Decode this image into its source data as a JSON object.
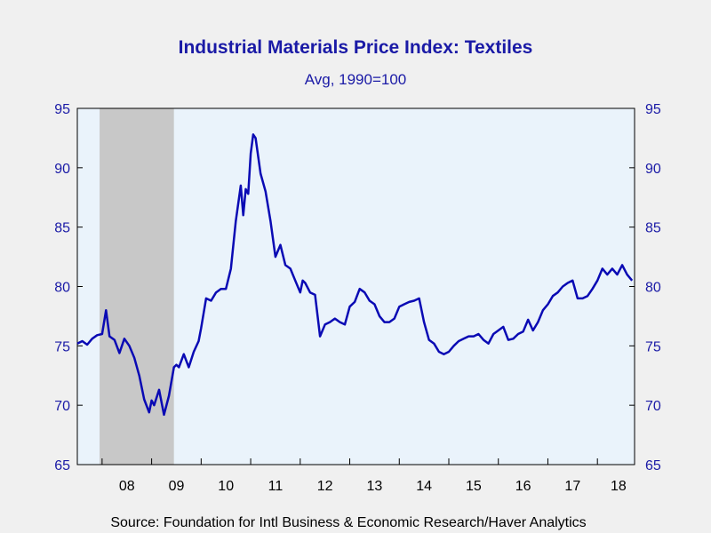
{
  "chart_data": {
    "type": "line",
    "title": "Industrial Materials Price Index: Textiles",
    "subtitle": "Avg, 1990=100",
    "source": "Source:  Foundation for Intl Business & Economic Research/Haver Analytics",
    "xlabel": "",
    "ylabel": "",
    "ylim": [
      65,
      95
    ],
    "yticks": [
      65,
      70,
      75,
      80,
      85,
      90,
      95
    ],
    "xlim": [
      2007.5,
      2018.75
    ],
    "x_tick_labels": [
      "08",
      "09",
      "10",
      "11",
      "12",
      "13",
      "14",
      "15",
      "16",
      "17",
      "18"
    ],
    "x_tick_years": [
      2008,
      2009,
      2010,
      2011,
      2012,
      2013,
      2014,
      2015,
      2016,
      2017,
      2018
    ],
    "recession": [
      2007.95,
      2009.45
    ],
    "grid": false,
    "legend": "none",
    "colors": {
      "line": "#0a0ab4",
      "plot_bg": "#eaf3fb",
      "recession": "#c8c8c8",
      "text": "#1a1aa6"
    },
    "series": [
      {
        "x": [
          2007.5,
          2007.6,
          2007.7,
          2007.8,
          2007.9,
          2008.0,
          2008.08,
          2008.15,
          2008.25,
          2008.35,
          2008.45,
          2008.55,
          2008.65,
          2008.75,
          2008.85,
          2008.95,
          2009.0,
          2009.05,
          2009.15,
          2009.25,
          2009.35,
          2009.45,
          2009.5,
          2009.55,
          2009.65,
          2009.75,
          2009.85,
          2009.95,
          2010.0,
          2010.1,
          2010.2,
          2010.3,
          2010.4,
          2010.5,
          2010.6,
          2010.7,
          2010.8,
          2010.85,
          2010.9,
          2010.95,
          2011.0,
          2011.05,
          2011.1,
          2011.2,
          2011.3,
          2011.4,
          2011.5,
          2011.6,
          2011.7,
          2011.8,
          2011.9,
          2012.0,
          2012.05,
          2012.1,
          2012.2,
          2012.3,
          2012.4,
          2012.5,
          2012.6,
          2012.7,
          2012.8,
          2012.9,
          2013.0,
          2013.1,
          2013.2,
          2013.3,
          2013.4,
          2013.5,
          2013.6,
          2013.7,
          2013.8,
          2013.9,
          2014.0,
          2014.1,
          2014.2,
          2014.3,
          2014.4,
          2014.5,
          2014.6,
          2014.7,
          2014.8,
          2014.9,
          2015.0,
          2015.1,
          2015.2,
          2015.3,
          2015.4,
          2015.5,
          2015.6,
          2015.7,
          2015.8,
          2015.9,
          2016.0,
          2016.1,
          2016.2,
          2016.3,
          2016.4,
          2016.5,
          2016.6,
          2016.7,
          2016.8,
          2016.9,
          2017.0,
          2017.1,
          2017.2,
          2017.3,
          2017.4,
          2017.5,
          2017.6,
          2017.7,
          2017.8,
          2017.9,
          2018.0,
          2018.1,
          2018.2,
          2018.3,
          2018.4,
          2018.5,
          2018.6,
          2018.7
        ],
        "values": [
          75.2,
          75.4,
          75.1,
          75.6,
          75.9,
          76.0,
          78.0,
          75.8,
          75.5,
          74.4,
          75.6,
          75.0,
          74.0,
          72.5,
          70.5,
          69.4,
          70.4,
          70.0,
          71.3,
          69.2,
          70.8,
          73.2,
          73.4,
          73.2,
          74.3,
          73.2,
          74.5,
          75.4,
          76.5,
          79.0,
          78.8,
          79.5,
          79.8,
          79.8,
          81.5,
          85.5,
          88.5,
          86.0,
          88.2,
          87.8,
          91.2,
          92.8,
          92.5,
          89.5,
          88.0,
          85.5,
          82.5,
          83.5,
          81.8,
          81.5,
          80.5,
          79.5,
          80.5,
          80.3,
          79.5,
          79.3,
          75.8,
          76.8,
          77.0,
          77.3,
          77.0,
          76.8,
          78.3,
          78.7,
          79.8,
          79.5,
          78.8,
          78.5,
          77.5,
          77.0,
          77.0,
          77.3,
          78.3,
          78.5,
          78.7,
          78.8,
          79.0,
          77.0,
          75.5,
          75.2,
          74.5,
          74.3,
          74.5,
          75.0,
          75.4,
          75.6,
          75.8,
          75.8,
          76.0,
          75.5,
          75.2,
          76.0,
          76.3,
          76.6,
          75.5,
          75.6,
          76.0,
          76.2,
          77.2,
          76.3,
          77.0,
          78.0,
          78.5,
          79.2,
          79.5,
          80.0,
          80.3,
          80.5,
          79.0,
          79.0,
          79.2,
          79.8,
          80.5,
          81.5,
          81.0,
          81.5,
          81.0,
          81.8,
          81.0,
          80.5
        ]
      }
    ]
  }
}
